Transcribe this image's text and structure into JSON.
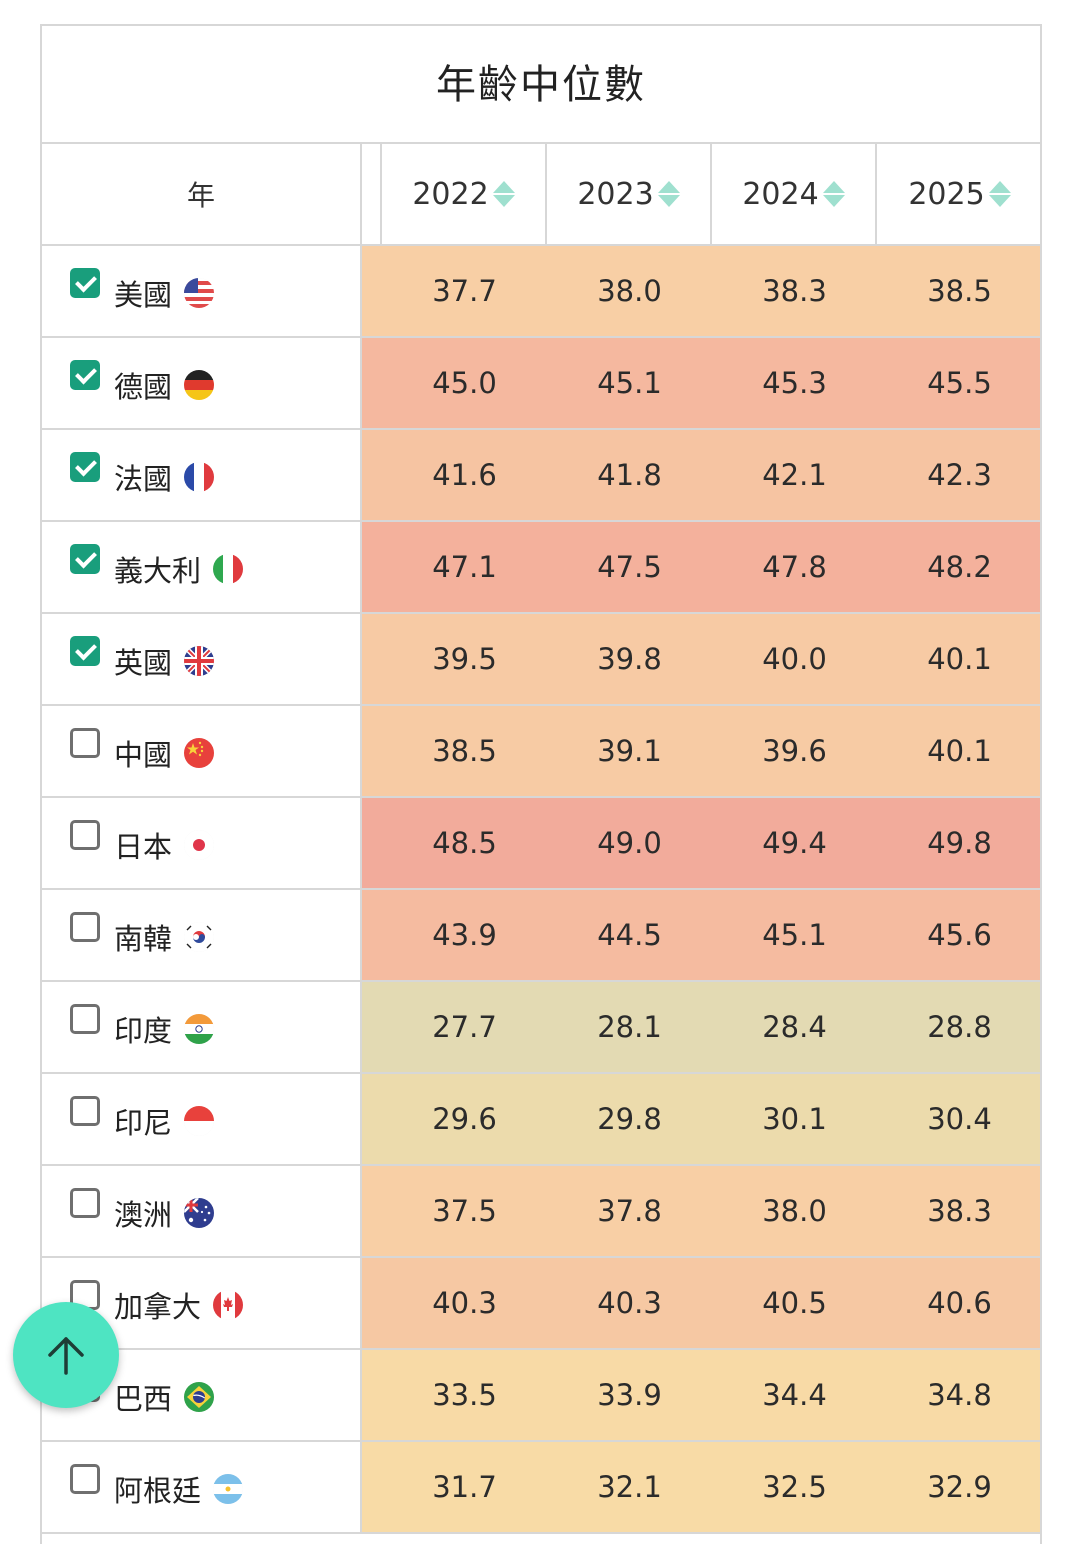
{
  "table": {
    "title": "年齡中位數",
    "year_header": "年",
    "columns": [
      "2022",
      "2023",
      "2024",
      "2025"
    ],
    "rows": [
      {
        "country": "美國",
        "checked": true,
        "flag": "us-flag-icon",
        "values": [
          "37.7",
          "38.0",
          "38.3",
          "38.5"
        ],
        "color": "#f8cfa5"
      },
      {
        "country": "德國",
        "checked": true,
        "flag": "germany-flag-icon",
        "values": [
          "45.0",
          "45.1",
          "45.3",
          "45.5"
        ],
        "color": "#f5b89f"
      },
      {
        "country": "法國",
        "checked": true,
        "flag": "france-flag-icon",
        "values": [
          "41.6",
          "41.8",
          "42.1",
          "42.3"
        ],
        "color": "#f6c4a2"
      },
      {
        "country": "義大利",
        "checked": true,
        "flag": "italy-flag-icon",
        "values": [
          "47.1",
          "47.5",
          "47.8",
          "48.2"
        ],
        "color": "#f4b19c"
      },
      {
        "country": "英國",
        "checked": true,
        "flag": "uk-flag-icon",
        "values": [
          "39.5",
          "39.8",
          "40.0",
          "40.1"
        ],
        "color": "#f7caa4"
      },
      {
        "country": "中國",
        "checked": false,
        "flag": "china-flag-icon",
        "values": [
          "38.5",
          "39.1",
          "39.6",
          "40.1"
        ],
        "color": "#f7cba4"
      },
      {
        "country": "日本",
        "checked": false,
        "flag": "japan-flag-icon",
        "values": [
          "48.5",
          "49.0",
          "49.4",
          "49.8"
        ],
        "color": "#f2ab9b"
      },
      {
        "country": "南韓",
        "checked": false,
        "flag": "korea-flag-icon",
        "values": [
          "43.9",
          "44.5",
          "45.1",
          "45.6"
        ],
        "color": "#f5bba0"
      },
      {
        "country": "印度",
        "checked": false,
        "flag": "india-flag-icon",
        "values": [
          "27.7",
          "28.1",
          "28.4",
          "28.8"
        ],
        "color": "#e3dab3"
      },
      {
        "country": "印尼",
        "checked": false,
        "flag": "indonesia-flag-icon",
        "values": [
          "29.6",
          "29.8",
          "30.1",
          "30.4"
        ],
        "color": "#ecdbac"
      },
      {
        "country": "澳洲",
        "checked": false,
        "flag": "australia-flag-icon",
        "values": [
          "37.5",
          "37.8",
          "38.0",
          "38.3"
        ],
        "color": "#f8cfa5"
      },
      {
        "country": "加拿大",
        "checked": false,
        "flag": "canada-flag-icon",
        "values": [
          "40.3",
          "40.3",
          "40.5",
          "40.6"
        ],
        "color": "#f6c8a3"
      },
      {
        "country": "巴西",
        "checked": false,
        "flag": "brazil-flag-icon",
        "values": [
          "33.5",
          "33.9",
          "34.4",
          "34.8"
        ],
        "color": "#f8daa6"
      },
      {
        "country": "阿根廷",
        "checked": false,
        "flag": "argentina-flag-icon",
        "values": [
          "31.7",
          "32.1",
          "32.5",
          "32.9"
        ],
        "color": "#f8dba6"
      }
    ]
  },
  "fab": {
    "icon": "arrow-up-icon"
  }
}
